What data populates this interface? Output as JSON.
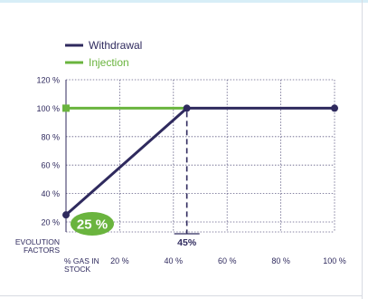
{
  "chart_data": {
    "type": "line",
    "title": "",
    "legend": {
      "placement": "top-left",
      "entries": [
        {
          "name": "Withdrawal",
          "color": "#2f2a5e"
        },
        {
          "name": "Injection",
          "color": "#6ab43e"
        }
      ]
    },
    "x_axis": {
      "label": "% GAS IN STOCK",
      "ticks": [
        {
          "value": 0,
          "label": "% GAS IN STOCK"
        },
        {
          "value": 20,
          "label": "20 %"
        },
        {
          "value": 40,
          "label": "40 %"
        },
        {
          "value": 60,
          "label": "60 %"
        },
        {
          "value": 80,
          "label": "80 %"
        },
        {
          "value": 100,
          "label": "100 %"
        }
      ],
      "range": [
        0,
        100
      ]
    },
    "y_axis": {
      "label": "EVOLUTION FACTORS",
      "ticks": [
        {
          "value": 20,
          "label": "20 %"
        },
        {
          "value": 40,
          "label": "40 %"
        },
        {
          "value": 60,
          "label": "60 %"
        },
        {
          "value": 80,
          "label": "80 %"
        },
        {
          "value": 100,
          "label": "100 %"
        },
        {
          "value": 120,
          "label": "120 %"
        }
      ],
      "range": [
        20,
        120
      ]
    },
    "grid": true,
    "series": [
      {
        "name": "Withdrawal",
        "color": "#2f2a5e",
        "points": [
          {
            "x": 0,
            "y": 25
          },
          {
            "x": 45,
            "y": 100
          },
          {
            "x": 100,
            "y": 100
          }
        ]
      },
      {
        "name": "Injection",
        "color": "#6ab43e",
        "points": [
          {
            "x": 0,
            "y": 100
          },
          {
            "x": 45,
            "y": 100
          }
        ]
      }
    ],
    "annotations": [
      {
        "type": "badge",
        "text": "25 %",
        "x": 0,
        "y": 25,
        "color": "#6ab43e"
      },
      {
        "type": "guide",
        "text": "45%",
        "x": 45,
        "y": 100,
        "color": "#2f2a5e"
      }
    ]
  }
}
